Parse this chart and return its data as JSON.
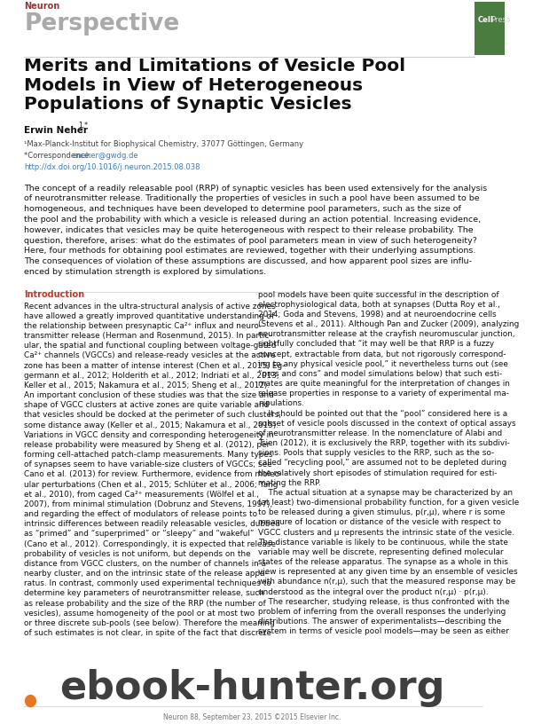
{
  "bg_color": "#ffffff",
  "header_neuron_text": "Neuron",
  "header_neuron_color": "#8b3a3a",
  "header_perspective_text": "Perspective",
  "header_perspective_color": "#aaaaaa",
  "cellpress_bg": "#4a7c3f",
  "title_line1": "Merits and Limitations of Vesicle Pool",
  "title_line2": "Models in View of Heterogeneous",
  "title_line3": "Populations of Synaptic Vesicles",
  "author": "Erwin Neher",
  "author_super": "1,*",
  "affil1": "¹Max-Planck-Institut for Biophysical Chemistry, 37077 Göttingen, Germany",
  "affil2_prefix": "*Correspondence: ",
  "affil2_link": "eneher@gwdg.de",
  "affil3": "http://dx.doi.org/10.1016/j.neuron.2015.08.038",
  "affil_link_color": "#3a7abf",
  "abstract_lines": [
    "The concept of a readily releasable pool (RRP) of synaptic vesicles has been used extensively for the analysis",
    "of neurotransmitter release. Traditionally the properties of vesicles in such a pool have been assumed to be",
    "homogeneous, and techniques have been developed to determine pool parameters, such as the size of",
    "the pool and the probability with which a vesicle is released during an action potential. Increasing evidence,",
    "however, indicates that vesicles may be quite heterogeneous with respect to their release probability. The",
    "question, therefore, arises: what do the estimates of pool parameters mean in view of such heterogeneity?",
    "Here, four methods for obtaining pool estimates are reviewed, together with their underlying assumptions.",
    "The consequences of violation of these assumptions are discussed, and how apparent pool sizes are influ-",
    "enced by stimulation strength is explored by simulations."
  ],
  "intro_heading": "Introduction",
  "intro_heading_color": "#c0392b",
  "col1_lines": [
    "Recent advances in the ultra-structural analysis of active zones",
    "have allowed a greatly improved quantitative understanding of",
    "the relationship between presynaptic Ca²⁺ influx and neuro-",
    "transmitter release (Herman and Rosenmund, 2015). In partic-",
    "ular, the spatial and functional coupling between voltage-gated",
    "Ca²⁺ channels (VGCCs) and release-ready vesicles at the active",
    "zone has been a matter of intense interest (Chen et al., 2015; Eg-",
    "germann et al., 2012; Holderith et al., 2012; Indriati et al., 2013;",
    "Keller et al., 2015; Nakamura et al., 2015; Sheng et al., 2012).",
    "An important conclusion of these studies was that the size and",
    "shape of VGCC clusters at active zones are quite variable and",
    "that vesicles should be docked at the perimeter of such clusters,",
    "some distance away (Keller et al., 2015; Nakamura et al., 2015).",
    "Variations in VGCC density and corresponding heterogeneity in",
    "release probability were measured by Sheng et al. (2012), per-",
    "forming cell-attached patch-clamp measurements. Many types",
    "of synapses seem to have variable-size clusters of VGCCs; see",
    "Cano et al. (2013) for review. Furthermore, evidence from molec-",
    "ular perturbations (Chen et al., 2015; Schlüter et al., 2006; Yang",
    "et al., 2010), from caged Ca²⁺ measurements (Wölfel et al.,",
    "2007), from minimal stimulation (Dobrunz and Stevens, 1997),",
    "and regarding the effect of modulators of release points to",
    "intrinsic differences between readily releasable vesicles, dubbed",
    "as “primed” and “superprimed” or “sleepy” and “wakeful”",
    "(Cano et al., 2012). Correspondingly, it is expected that release",
    "probability of vesicles is not uniform, but depends on the",
    "distance from VGCC clusters, on the number of channels in a",
    "nearby cluster, and on the intrinsic state of the release appa-",
    "ratus. In contrast, commonly used experimental techniques to",
    "determine key parameters of neurotransmitter release, such",
    "as release probability and the size of the RRP (the number of",
    "vesicles), assume homogeneity of the pool or at most two",
    "or three discrete sub-pools (see below). Therefore the meaning",
    "of such estimates is not clear, in spite of the fact that discrete"
  ],
  "col2_lines": [
    "pool models have been quite successful in the description of",
    "electrophysiological data, both at synapses (Dutta Roy et al.,",
    "2014; Goda and Stevens, 1998) and at neuroendocrine cells",
    "(Stevens et al., 2011). Although Pan and Zucker (2009), analyzing",
    "neurotransmitter release at the crayfish neuromuscular junction,",
    "rightfully concluded that “it may well be that RRP is a fuzzy",
    "concept, extractable from data, but not rigorously correspond-",
    "ing to any physical vesicle pool,” it nevertheless turns out (see",
    "“pros and cons” and model simulations below) that such esti-",
    "mates are quite meaningful for the interpretation of changes in",
    "release properties in response to a variety of experimental ma-",
    "nipulations.",
    "    It should be pointed out that the “pool” considered here is a",
    "subset of vesicle pools discussed in the context of optical assays",
    "of neurotransmitter release. In the nomenclature of Alabi and",
    "Tsien (2012), it is exclusively the RRP, together with its subdivi-",
    "sions. Pools that supply vesicles to the RRP, such as the so-",
    "called “recycling pool,” are assumed not to be depleted during",
    "the relatively short episodes of stimulation required for esti-",
    "mating the RRP.",
    "    The actual situation at a synapse may be characterized by an",
    "(at least) two-dimensional probability function, for a given vesicle",
    "to be released during a given stimulus, p(r,μ), where r is some",
    "measure of location or distance of the vesicle with respect to",
    "VGCC clusters and μ represents the intrinsic state of the vesicle.",
    "The distance variable is likely to be continuous, while the state",
    "variable may well be discrete, representing defined molecular",
    "states of the release apparatus. The synapse as a whole in this",
    "view is represented at any given time by an ensemble of vesicles",
    "with abundance n(r,μ), such that the measured response may be",
    "understood as the integral over the product n(r,μ) · p(r,μ).",
    "    The researcher, studying release, is thus confronted with the",
    "problem of inferring from the overall responses the underlying",
    "distributions. The answer of experimentalists—describing the",
    "system in terms of vesicle pool models—may be seen as either"
  ],
  "watermark_text": "ebook-hunter.org",
  "watermark_color": "#2a2a2a",
  "footer_text": "Neuron 88, September 23, 2015 ©2015 Elsevier Inc.",
  "footer_color": "#777777",
  "crossmark_color": "#e87722"
}
